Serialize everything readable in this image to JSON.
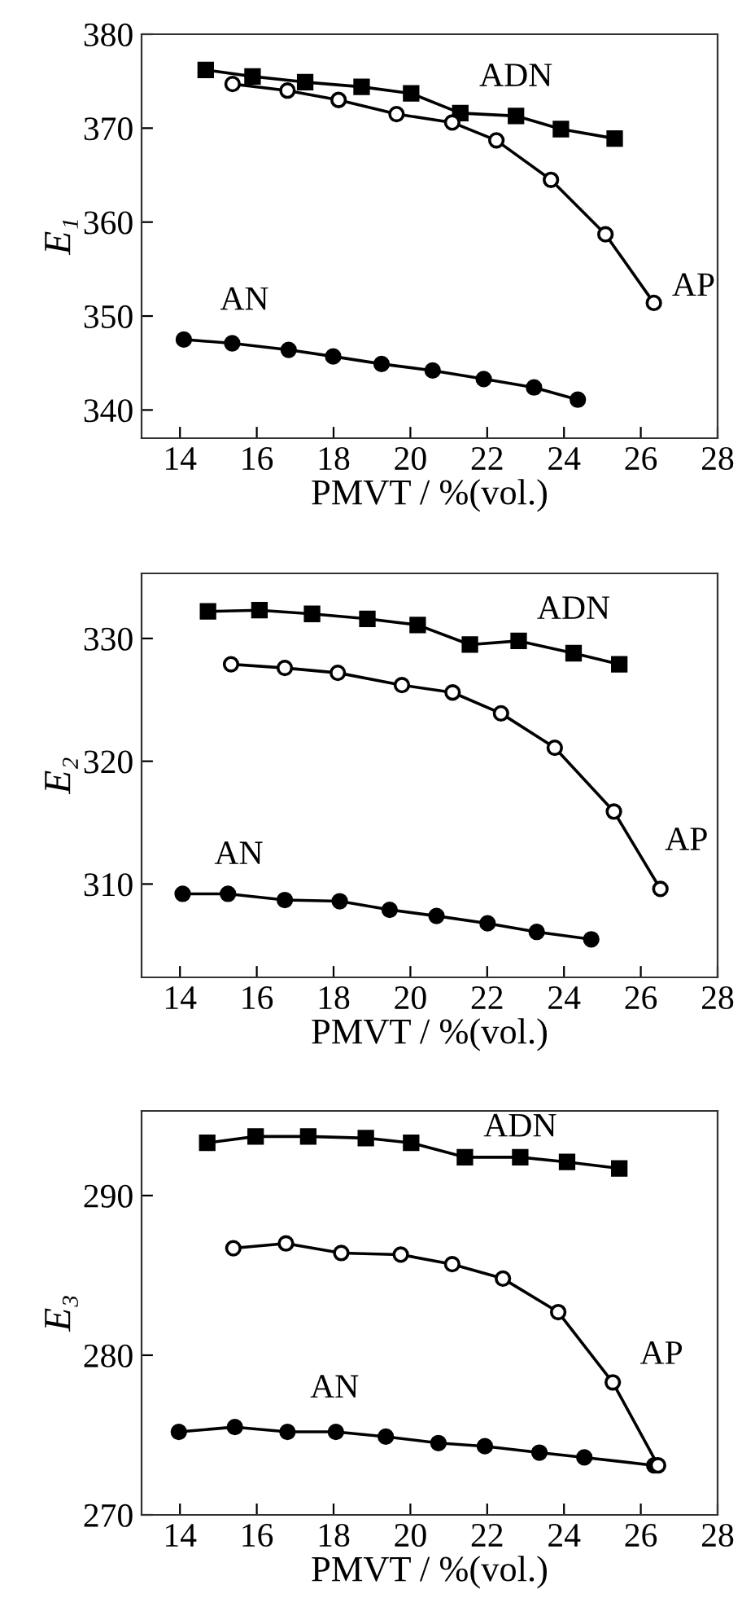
{
  "chart_data": [
    {
      "type": "line",
      "ylabel": "E₁",
      "xlabel": "PMVT / %(vol.)",
      "xlim": [
        13,
        28
      ],
      "xticks": [
        14,
        16,
        18,
        20,
        22,
        24,
        26,
        28
      ],
      "ylim": [
        337,
        380
      ],
      "yticks": [
        340,
        350,
        360,
        370,
        380
      ],
      "grid": false,
      "legend": false,
      "line_style": "solid",
      "series": [
        {
          "name": "ADN",
          "color": "#000000",
          "marker": "square",
          "x": [
            14.67,
            15.89,
            17.26,
            18.73,
            20.02,
            21.3,
            22.75,
            23.92,
            25.32
          ],
          "values": [
            376.2,
            375.5,
            374.9,
            374.4,
            373.7,
            371.6,
            371.3,
            369.9,
            368.9
          ]
        },
        {
          "name": "AP",
          "color": "#000000",
          "marker": "circle_open",
          "x": [
            15.37,
            16.8,
            18.13,
            19.64,
            21.09,
            22.24,
            23.66,
            25.08,
            26.34
          ],
          "values": [
            374.7,
            374.0,
            373.0,
            371.5,
            370.6,
            368.7,
            364.5,
            358.7,
            351.4
          ]
        },
        {
          "name": "AN",
          "color": "#000000",
          "marker": "circle",
          "x": [
            14.1,
            15.36,
            16.83,
            17.99,
            19.25,
            20.58,
            21.91,
            23.22,
            24.36
          ],
          "values": [
            347.5,
            347.1,
            346.4,
            345.7,
            344.9,
            344.2,
            343.3,
            342.4,
            341.1
          ]
        }
      ]
    },
    {
      "type": "line",
      "ylabel": "E₂",
      "xlabel": "PMVT / %(vol.)",
      "xlim": [
        13,
        28
      ],
      "xticks": [
        14,
        16,
        18,
        20,
        22,
        24,
        26,
        28
      ],
      "ylim": [
        302.4,
        335.3
      ],
      "yticks": [
        310,
        320,
        330
      ],
      "grid": false,
      "legend": false,
      "line_style": "solid",
      "series": [
        {
          "name": "ADN",
          "color": "#000000",
          "marker": "square",
          "x": [
            14.73,
            16.07,
            17.44,
            18.88,
            20.19,
            21.55,
            22.82,
            24.25,
            25.44
          ],
          "values": [
            332.2,
            332.3,
            332.0,
            331.6,
            331.1,
            329.5,
            329.8,
            328.8,
            327.9
          ]
        },
        {
          "name": "AP",
          "color": "#000000",
          "marker": "circle_open",
          "x": [
            15.33,
            16.73,
            18.11,
            19.78,
            21.1,
            22.36,
            23.76,
            25.3,
            26.51
          ],
          "values": [
            327.9,
            327.6,
            327.2,
            326.2,
            325.6,
            323.9,
            321.1,
            315.9,
            309.6
          ]
        },
        {
          "name": "AN",
          "color": "#000000",
          "marker": "circle",
          "x": [
            14.07,
            15.25,
            16.73,
            18.16,
            19.46,
            20.68,
            22.01,
            23.29,
            24.71
          ],
          "values": [
            309.2,
            309.2,
            308.7,
            308.6,
            307.9,
            307.4,
            306.8,
            306.1,
            305.5
          ]
        }
      ]
    },
    {
      "type": "line",
      "ylabel": "E₃",
      "xlabel": "PMVT / %(vol.)",
      "xlim": [
        13,
        28
      ],
      "xticks": [
        14,
        16,
        18,
        20,
        22,
        24,
        26,
        28
      ],
      "ylim": [
        270,
        295.3
      ],
      "yticks": [
        270,
        280,
        290
      ],
      "grid": false,
      "legend": false,
      "line_style": "solid",
      "series": [
        {
          "name": "ADN",
          "color": "#000000",
          "marker": "square",
          "x": [
            14.71,
            15.97,
            17.34,
            18.84,
            20.02,
            21.42,
            22.86,
            24.08,
            25.44
          ],
          "values": [
            293.3,
            293.7,
            293.7,
            293.6,
            293.3,
            292.4,
            292.4,
            292.1,
            291.7
          ]
        },
        {
          "name": "AP",
          "color": "#000000",
          "marker": "circle_open",
          "x": [
            15.39,
            16.76,
            18.2,
            19.75,
            21.09,
            22.41,
            23.85,
            25.27,
            26.45
          ],
          "values": [
            286.7,
            287.0,
            286.4,
            286.3,
            285.7,
            284.8,
            282.7,
            278.3,
            273.1
          ]
        },
        {
          "name": "AN",
          "color": "#000000",
          "marker": "circle",
          "x": [
            13.97,
            15.43,
            16.8,
            18.06,
            19.36,
            20.73,
            21.94,
            23.36,
            24.53,
            26.35
          ],
          "values": [
            275.2,
            275.5,
            275.2,
            275.2,
            274.9,
            274.5,
            274.3,
            273.9,
            273.6,
            273.1
          ]
        }
      ]
    }
  ]
}
